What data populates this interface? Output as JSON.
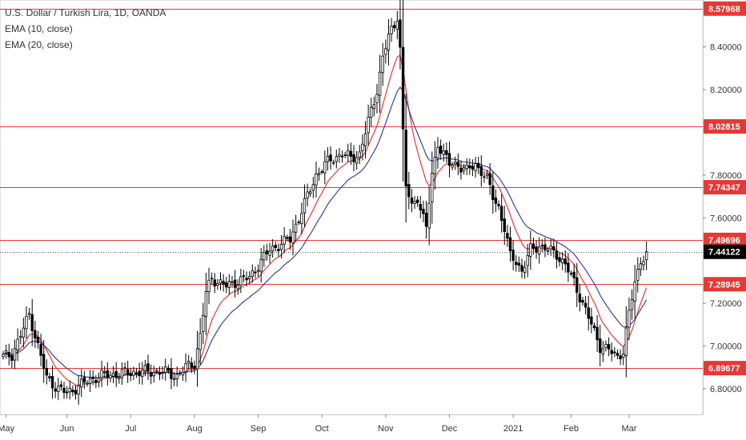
{
  "legend": {
    "title": "U.S. Dollar / Turkish Lira, 1D, OANDA",
    "ema1": "EMA (10, close)",
    "ema2": "EMA (20, close)"
  },
  "colors": {
    "up": "#ffffff",
    "down": "#000000",
    "wick": "#000000",
    "level": "#e53935",
    "ema10": "#e53935",
    "ema20": "#3f3fa0",
    "badge": "#e53935",
    "last_badge": "#000000"
  },
  "chart_data": {
    "type": "candlestick",
    "title": "U.S. Dollar / Turkish Lira, 1D, OANDA",
    "ylim": [
      6.68,
      8.62
    ],
    "y_ticks": [
      "8.40000",
      "8.20000",
      "7.80000",
      "7.60000",
      "7.20000",
      "7.00000",
      "6.80000"
    ],
    "y_tick_values": [
      8.4,
      8.2,
      7.8,
      7.6,
      7.2,
      7.0,
      6.8
    ],
    "x_labels": [
      "May",
      "Jun",
      "Jul",
      "Aug",
      "Sep",
      "Oct",
      "Nov",
      "Dec",
      "2021",
      "Feb",
      "Mar"
    ],
    "x_label_index": [
      1,
      22,
      44,
      66,
      88,
      110,
      132,
      154,
      176,
      196,
      216
    ],
    "levels": [
      {
        "value": 8.57968,
        "label": "8.57968"
      },
      {
        "value": 8.02815,
        "label": "8.02815"
      },
      {
        "value": 7.74347,
        "label": "7.74347"
      },
      {
        "value": 7.49696,
        "label": "7.49696"
      },
      {
        "value": 7.28945,
        "label": "7.28945"
      },
      {
        "value": 6.89677,
        "label": "6.89677"
      }
    ],
    "last_price": {
      "value": 7.44122,
      "label": "7.44122"
    },
    "close_keyframes": [
      [
        0,
        6.95
      ],
      [
        3,
        6.96
      ],
      [
        6,
        7.05
      ],
      [
        9,
        7.15
      ],
      [
        12,
        7.0
      ],
      [
        15,
        6.85
      ],
      [
        19,
        6.8
      ],
      [
        22,
        6.78
      ],
      [
        27,
        6.82
      ],
      [
        33,
        6.86
      ],
      [
        40,
        6.87
      ],
      [
        47,
        6.88
      ],
      [
        55,
        6.88
      ],
      [
        60,
        6.86
      ],
      [
        63,
        6.9
      ],
      [
        66,
        6.92
      ],
      [
        68,
        7.05
      ],
      [
        70,
        7.25
      ],
      [
        72,
        7.32
      ],
      [
        74,
        7.3
      ],
      [
        77,
        7.28
      ],
      [
        80,
        7.3
      ],
      [
        85,
        7.32
      ],
      [
        88,
        7.38
      ],
      [
        92,
        7.45
      ],
      [
        96,
        7.48
      ],
      [
        99,
        7.5
      ],
      [
        102,
        7.6
      ],
      [
        105,
        7.7
      ],
      [
        108,
        7.8
      ],
      [
        111,
        7.85
      ],
      [
        114,
        7.88
      ],
      [
        117,
        7.9
      ],
      [
        120,
        7.88
      ],
      [
        123,
        7.9
      ],
      [
        125,
        8.0
      ],
      [
        127,
        8.1
      ],
      [
        129,
        8.2
      ],
      [
        131,
        8.35
      ],
      [
        133,
        8.45
      ],
      [
        135,
        8.5
      ],
      [
        136,
        8.55
      ],
      [
        137,
        8.4
      ],
      [
        138,
        8.0
      ],
      [
        139,
        7.75
      ],
      [
        141,
        7.65
      ],
      [
        143,
        7.7
      ],
      [
        145,
        7.6
      ],
      [
        146,
        7.55
      ],
      [
        148,
        7.8
      ],
      [
        150,
        7.95
      ],
      [
        152,
        7.9
      ],
      [
        154,
        7.85
      ],
      [
        157,
        7.85
      ],
      [
        160,
        7.82
      ],
      [
        163,
        7.85
      ],
      [
        165,
        7.82
      ],
      [
        167,
        7.78
      ],
      [
        169,
        7.7
      ],
      [
        171,
        7.65
      ],
      [
        173,
        7.55
      ],
      [
        175,
        7.42
      ],
      [
        177,
        7.4
      ],
      [
        179,
        7.35
      ],
      [
        182,
        7.45
      ],
      [
        185,
        7.47
      ],
      [
        188,
        7.45
      ],
      [
        191,
        7.43
      ],
      [
        194,
        7.38
      ],
      [
        197,
        7.3
      ],
      [
        200,
        7.2
      ],
      [
        203,
        7.1
      ],
      [
        206,
        7.0
      ],
      [
        209,
        6.98
      ],
      [
        212,
        6.95
      ],
      [
        214,
        6.98
      ],
      [
        216,
        7.15
      ],
      [
        218,
        7.3
      ],
      [
        219,
        7.35
      ],
      [
        220,
        7.4
      ],
      [
        221,
        7.42
      ],
      [
        222,
        7.44
      ]
    ]
  }
}
